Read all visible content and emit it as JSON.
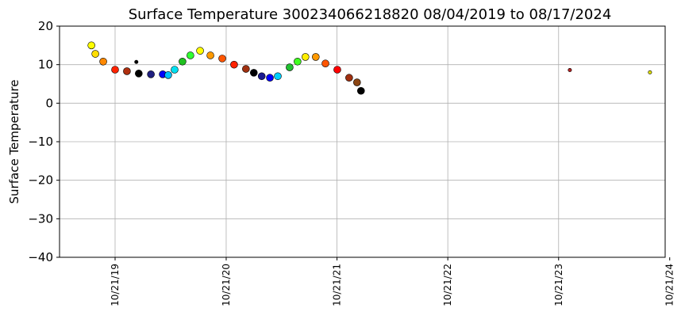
{
  "chart_data": {
    "type": "scatter",
    "title": "Surface Temperature 300234066218820  08/04/2019 to 08/17/2024",
    "y_label": "Surface Temperature",
    "x": [
      "2019-08-04",
      "2019-08-17",
      "2019-09-12",
      "2019-10-21",
      "2019-11-29",
      "2019-12-30",
      "2020-01-07",
      "2020-02-16",
      "2020-03-26",
      "2020-04-13",
      "2020-05-04",
      "2020-05-30",
      "2020-06-25",
      "2020-07-27",
      "2020-08-30",
      "2020-10-08",
      "2020-11-16",
      "2020-12-25",
      "2021-01-20",
      "2021-02-15",
      "2021-03-14",
      "2021-04-09",
      "2021-05-18",
      "2021-06-13",
      "2021-07-09",
      "2021-08-12",
      "2021-09-13",
      "2021-10-22",
      "2021-11-30",
      "2021-12-26",
      "2022-01-08",
      "2023-11-27",
      "2024-08-17"
    ],
    "values": [
      15,
      12.8,
      10.8,
      8.7,
      8.3,
      10.7,
      7.7,
      7.5,
      7.5,
      7.3,
      8.7,
      10.8,
      12.4,
      13.6,
      12.4,
      11.6,
      10,
      8.9,
      7.9,
      7,
      6.6,
      7,
      9.3,
      10.8,
      12,
      12,
      10.3,
      8.7,
      6.6,
      5.4,
      3.2,
      8.6,
      8
    ],
    "colors": [
      "#ffff00",
      "#ffdd00",
      "#ff8800",
      "#ff2200",
      "#b03010",
      "#000000",
      "#000000",
      "#202080",
      "#0000ff",
      "#00c0ff",
      "#00e0f0",
      "#20c020",
      "#30ff30",
      "#ffff00",
      "#ff9900",
      "#ff5500",
      "#ff2200",
      "#a03010",
      "#000000",
      "#1a1a90",
      "#0000ff",
      "#00d0ff",
      "#20c030",
      "#40ff20",
      "#ffee00",
      "#ff9900",
      "#ff5500",
      "#ff0000",
      "#a03010",
      "#8b4513",
      "#000000",
      "#b22222",
      "#e0e000"
    ],
    "xlim": [
      "2019-04-21",
      "2024-10-06"
    ],
    "xticks": [
      {
        "value": "2019-10-21",
        "label": "10/21/19"
      },
      {
        "value": "2020-10-21",
        "label": "10/21/20"
      },
      {
        "value": "2021-10-21",
        "label": "10/21/21"
      },
      {
        "value": "2022-10-21",
        "label": "10/21/22"
      },
      {
        "value": "2023-10-21",
        "label": "10/21/23"
      },
      {
        "value": "2024-10-21",
        "label": "10/21/24"
      }
    ],
    "ylim": [
      -40,
      20
    ],
    "yticks": [
      {
        "value": -40,
        "label": "−40"
      },
      {
        "value": -30,
        "label": "−30"
      },
      {
        "value": -20,
        "label": "−20"
      },
      {
        "value": -10,
        "label": "−10"
      },
      0,
      10,
      20
    ],
    "grid": true
  }
}
